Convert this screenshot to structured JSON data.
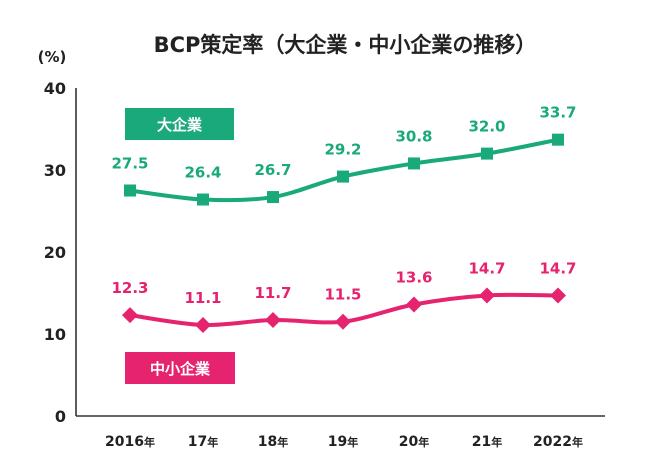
{
  "chart_data": {
    "type": "line",
    "title": "BCP策定率（大企業・中小企業の推移）",
    "unit_label": "(%)",
    "categories": [
      "2016年",
      "17年",
      "18年",
      "19年",
      "20年",
      "21年",
      "2022年"
    ],
    "ylim": [
      0,
      40
    ],
    "yticks": [
      0,
      10,
      20,
      30,
      40
    ],
    "grid": false,
    "series": [
      {
        "name": "大企業",
        "color": "#19a97a",
        "marker": "square",
        "values": [
          27.5,
          26.4,
          26.7,
          29.2,
          30.8,
          32.0,
          33.7
        ]
      },
      {
        "name": "中小企業",
        "color": "#e6236e",
        "marker": "diamond",
        "values": [
          12.3,
          11.1,
          11.7,
          11.5,
          13.6,
          14.7,
          14.7
        ]
      }
    ]
  }
}
